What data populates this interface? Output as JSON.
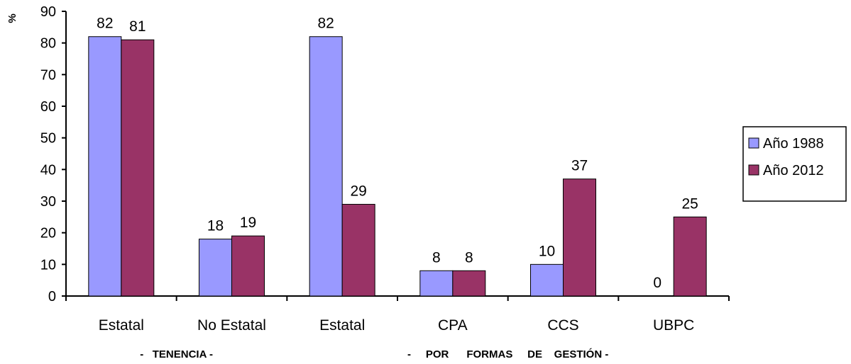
{
  "chart_data": {
    "type": "bar",
    "ylabel": "%",
    "ylim": [
      0,
      90
    ],
    "yticks": [
      0,
      10,
      20,
      30,
      40,
      50,
      60,
      70,
      80,
      90
    ],
    "categories": [
      "Estatal",
      "No Estatal",
      "Estatal",
      "CPA",
      "CCS",
      "UBPC"
    ],
    "groups": [
      {
        "label": "-   TENENCIA -",
        "start": 0,
        "end": 1
      },
      {
        "label": "-     POR      FORMAS     DE    GESTIÓN -",
        "start": 2,
        "end": 5
      }
    ],
    "series": [
      {
        "name": "Año 1988",
        "color": "#9999ff",
        "values": [
          82,
          18,
          82,
          8,
          10,
          0
        ],
        "labels": [
          "82",
          "18",
          "82",
          "8",
          "10",
          "0"
        ]
      },
      {
        "name": "Año 2012",
        "color": "#993366",
        "values": [
          81,
          19,
          29,
          8,
          37,
          25
        ],
        "labels": [
          "81",
          "19",
          "29",
          "8",
          "37",
          "25"
        ]
      }
    ],
    "legend": "right",
    "grid": false
  }
}
